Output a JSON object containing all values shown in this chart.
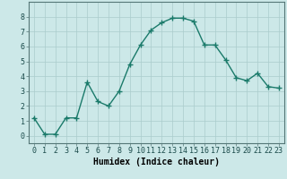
{
  "x": [
    0,
    1,
    2,
    3,
    4,
    5,
    6,
    7,
    8,
    9,
    10,
    11,
    12,
    13,
    14,
    15,
    16,
    17,
    18,
    19,
    20,
    21,
    22,
    23
  ],
  "y": [
    1.2,
    0.1,
    0.1,
    1.2,
    1.2,
    3.6,
    2.3,
    2.0,
    3.0,
    4.8,
    6.1,
    7.1,
    7.6,
    7.9,
    7.9,
    7.7,
    6.1,
    6.1,
    5.1,
    3.9,
    3.7,
    4.2,
    3.3,
    3.2
  ],
  "line_color": "#1a7a6a",
  "marker": "+",
  "marker_size": 4,
  "bg_color": "#cce8e8",
  "grid_color": "#aacccc",
  "xlabel": "Humidex (Indice chaleur)",
  "xlim": [
    -0.5,
    23.5
  ],
  "ylim": [
    -0.5,
    9.0
  ],
  "xticks": [
    0,
    1,
    2,
    3,
    4,
    5,
    6,
    7,
    8,
    9,
    10,
    11,
    12,
    13,
    14,
    15,
    16,
    17,
    18,
    19,
    20,
    21,
    22,
    23
  ],
  "yticks": [
    0,
    1,
    2,
    3,
    4,
    5,
    6,
    7,
    8
  ],
  "xlabel_fontsize": 7,
  "tick_fontsize": 6,
  "linewidth": 1.0
}
